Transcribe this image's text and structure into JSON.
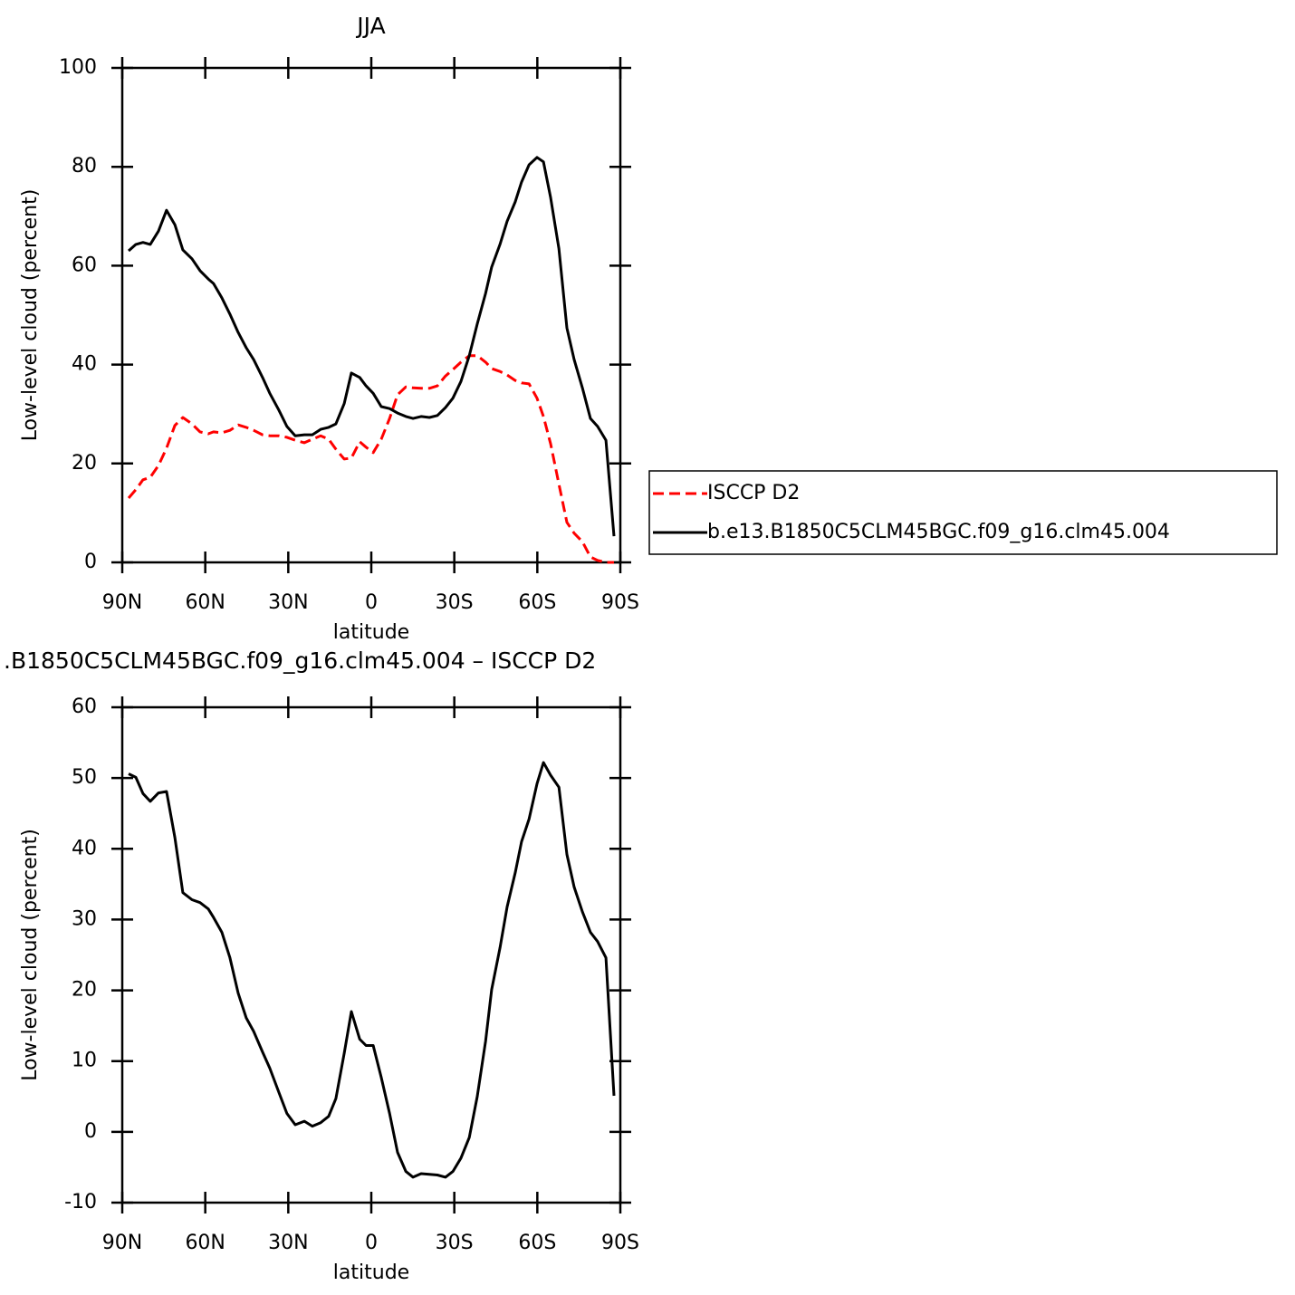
{
  "chart_data": [
    {
      "type": "line",
      "title": "JJA",
      "xlabel": "latitude",
      "ylabel": "Low-level cloud (percent)",
      "x": [
        87.7,
        85.1,
        82.5,
        79.9,
        76.9,
        74.0,
        71.0,
        68.1,
        64.8,
        61.9,
        58.9,
        57.0,
        54.0,
        51.1,
        48.1,
        45.2,
        42.5,
        39.3,
        36.7,
        33.4,
        30.5,
        27.5,
        24.2,
        21.3,
        18.3,
        15.4,
        12.8,
        9.8,
        7.2,
        4.2,
        1.9,
        -0.7,
        -3.6,
        -6.6,
        -9.5,
        -12.5,
        -15.1,
        -18.0,
        -21.0,
        -23.9,
        -26.8,
        -29.5,
        -32.4,
        -35.4,
        -38.3,
        -41.3,
        -43.5,
        -46.5,
        -49.1,
        -52.0,
        -54.3,
        -57.0,
        -59.9,
        -62.2,
        -64.8,
        -67.8,
        -70.7,
        -73.3,
        -76.3,
        -79.2,
        -81.8,
        -84.8,
        -87.7
      ],
      "series": [
        {
          "name": "ISCCP D2",
          "color": "#ff0000",
          "dashed": true,
          "values": [
            13.0,
            14.7,
            16.7,
            17.2,
            19.6,
            23.1,
            27.7,
            29.3,
            28.0,
            26.4,
            26.0,
            26.4,
            26.2,
            26.7,
            27.8,
            27.3,
            26.7,
            25.8,
            25.6,
            25.6,
            25.3,
            24.7,
            24.2,
            24.9,
            25.6,
            24.9,
            22.9,
            20.9,
            21.1,
            24.4,
            23.3,
            22.2,
            24.9,
            29.1,
            33.9,
            35.5,
            35.3,
            35.2,
            35.2,
            35.7,
            37.7,
            39.0,
            40.5,
            41.8,
            41.8,
            40.5,
            39.2,
            38.6,
            37.9,
            36.8,
            36.3,
            36.1,
            33.2,
            29.5,
            24.0,
            15.8,
            8.1,
            5.9,
            4.2,
            1.1,
            0.4,
            0,
            0
          ]
        },
        {
          "name": "b.e13.B1850C5CLM45BGC.f09_g16.clm45.004",
          "color": "#000000",
          "dashed": false,
          "values": [
            63.0,
            64.3,
            64.7,
            64.3,
            67.0,
            71.2,
            68.3,
            63.2,
            61.4,
            59.0,
            57.3,
            56.4,
            53.5,
            50.2,
            46.5,
            43.4,
            41.0,
            37.4,
            34.2,
            30.8,
            27.5,
            25.6,
            25.8,
            25.8,
            26.9,
            27.3,
            28.0,
            32.1,
            38.3,
            37.4,
            35.7,
            34.2,
            31.5,
            31.1,
            30.2,
            29.5,
            29.1,
            29.5,
            29.3,
            29.7,
            31.3,
            33.2,
            36.6,
            41.8,
            48.2,
            54.4,
            59.7,
            64.3,
            69.0,
            72.9,
            76.9,
            80.4,
            81.9,
            81.0,
            73.8,
            63.4,
            47.4,
            41.0,
            35.3,
            29.1,
            27.5,
            24.7,
            5.3
          ]
        }
      ],
      "xlim": [
        90,
        -90
      ],
      "xticks": [
        {
          "value": 90,
          "label": "90N"
        },
        {
          "value": 60,
          "label": "60N"
        },
        {
          "value": 30,
          "label": "30N"
        },
        0,
        {
          "value": -30,
          "label": "30S"
        },
        {
          "value": -60,
          "label": "60S"
        },
        {
          "value": -90,
          "label": "90S"
        }
      ],
      "ylim": [
        0,
        100
      ],
      "yticks": [
        0,
        20,
        40,
        60,
        80,
        100
      ],
      "legend_position": "right"
    },
    {
      "type": "line",
      "title": ".B1850C5CLM45BGC.f09_g16.clm45.004 – ISCCP D2",
      "xlabel": "latitude",
      "ylabel": "Low-level cloud (percent)",
      "x": [
        87.7,
        85.1,
        82.5,
        79.9,
        76.9,
        74.0,
        71.0,
        68.1,
        64.8,
        61.9,
        58.9,
        57.0,
        54.0,
        51.1,
        48.1,
        45.2,
        42.5,
        39.3,
        36.7,
        33.4,
        30.5,
        27.5,
        24.2,
        21.3,
        18.3,
        15.4,
        12.8,
        9.8,
        7.2,
        4.2,
        1.9,
        -0.7,
        -3.6,
        -6.6,
        -9.5,
        -12.5,
        -15.1,
        -18.0,
        -21.0,
        -23.9,
        -26.8,
        -29.5,
        -32.4,
        -35.4,
        -38.3,
        -41.3,
        -43.5,
        -46.5,
        -49.1,
        -52.0,
        -54.3,
        -57.0,
        -59.9,
        -62.2,
        -64.8,
        -67.8,
        -70.7,
        -73.3,
        -76.3,
        -79.2,
        -81.8,
        -84.8,
        -87.7
      ],
      "color": "#000000",
      "values": [
        50.6,
        50.1,
        47.8,
        46.7,
        47.9,
        48.1,
        41.6,
        33.8,
        32.8,
        32.4,
        31.5,
        30.3,
        28.2,
        24.6,
        19.6,
        16.1,
        14.2,
        11.3,
        9.0,
        5.6,
        2.6,
        1.0,
        1.5,
        0.8,
        1.3,
        2.2,
        4.7,
        11.1,
        17.0,
        13.1,
        12.2,
        12.2,
        7.7,
        2.6,
        -2.9,
        -5.6,
        -6.4,
        -5.9,
        -6.0,
        -6.1,
        -6.4,
        -5.6,
        -3.7,
        -0.8,
        5.0,
        12.8,
        20.1,
        26.0,
        31.8,
        36.6,
        41.0,
        44.2,
        49.2,
        52.2,
        50.4,
        48.7,
        39.2,
        34.6,
        31.1,
        28.2,
        26.9,
        24.6,
        5.1
      ],
      "xlim": [
        90,
        -90
      ],
      "xticks": [
        {
          "value": 90,
          "label": "90N"
        },
        {
          "value": 60,
          "label": "60N"
        },
        {
          "value": 30,
          "label": "30N"
        },
        0,
        {
          "value": -30,
          "label": "30S"
        },
        {
          "value": -60,
          "label": "60S"
        },
        {
          "value": -90,
          "label": "90S"
        }
      ],
      "ylim": [
        -10,
        60
      ],
      "yticks": [
        -10,
        0,
        10,
        20,
        30,
        40,
        50,
        60
      ]
    }
  ]
}
